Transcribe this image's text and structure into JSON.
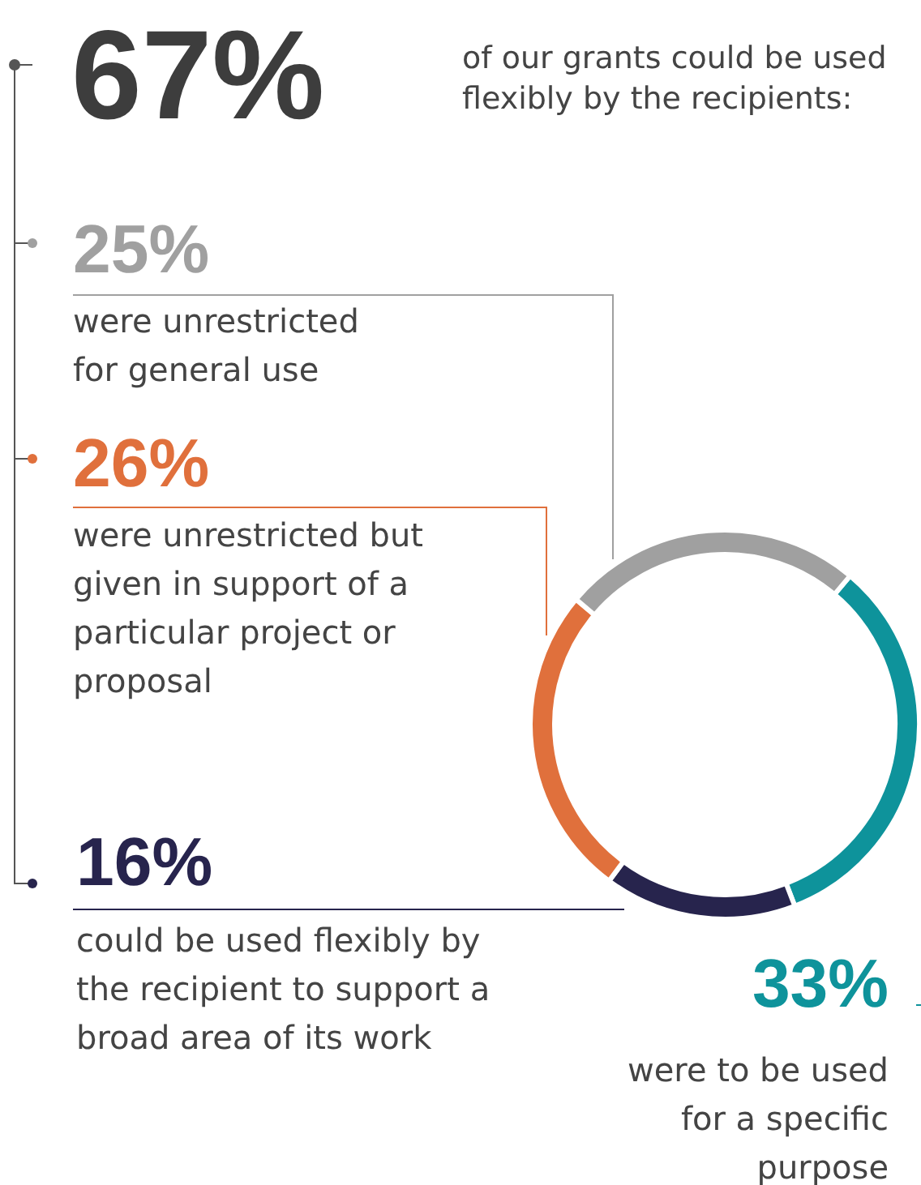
{
  "chart_data": {
    "type": "donut",
    "title": "67%",
    "subtitle": "of our grants could be used flexibly by the recipients:",
    "categories": [
      "were to be used for a specific purpose",
      "could be used flexibly by the recipient to support a broad area of its work",
      "were unrestricted but given in support of a particular project or proposal",
      "were unrestricted for general use"
    ],
    "values": [
      33,
      16,
      26,
      25
    ],
    "colors": [
      "#0e939b",
      "#27244d",
      "#e0703c",
      "#a0a0a0"
    ],
    "value_labels": [
      "33%",
      "16%",
      "26%",
      "25%"
    ]
  }
}
